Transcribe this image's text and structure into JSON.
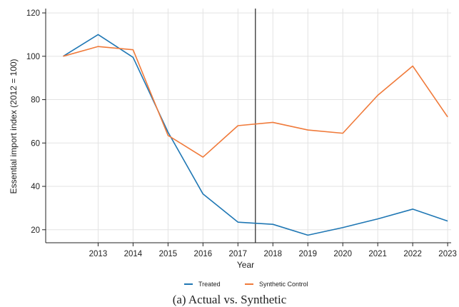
{
  "caption": "(a) Actual vs. Synthetic",
  "chart_data": {
    "type": "line",
    "title": "",
    "xlabel": "Year",
    "ylabel": "Essential import index (2012 = 100)",
    "x": [
      2012,
      2013,
      2014,
      2015,
      2016,
      2017,
      2018,
      2019,
      2020,
      2021,
      2022,
      2023
    ],
    "xticks": [
      2013,
      2014,
      2015,
      2016,
      2017,
      2018,
      2019,
      2020,
      2021,
      2022,
      2023
    ],
    "yticks": [
      20,
      40,
      60,
      80,
      100,
      120
    ],
    "xlim": [
      2011.5,
      2023.1
    ],
    "ylim": [
      14,
      122
    ],
    "grid": true,
    "legend_position": "bottom",
    "vertical_line_x": 2017.5,
    "series": [
      {
        "name": "Treated",
        "color": "#1f77b4",
        "values": [
          100,
          110,
          99.5,
          65,
          36.5,
          23.5,
          22.5,
          17.5,
          21,
          25,
          29.5,
          24
        ]
      },
      {
        "name": "Synthetic Control",
        "color": "#f07a3a",
        "values": [
          100,
          104.5,
          103,
          63.5,
          53.5,
          68,
          69.5,
          66,
          64.5,
          82,
          95.5,
          72
        ]
      }
    ]
  }
}
